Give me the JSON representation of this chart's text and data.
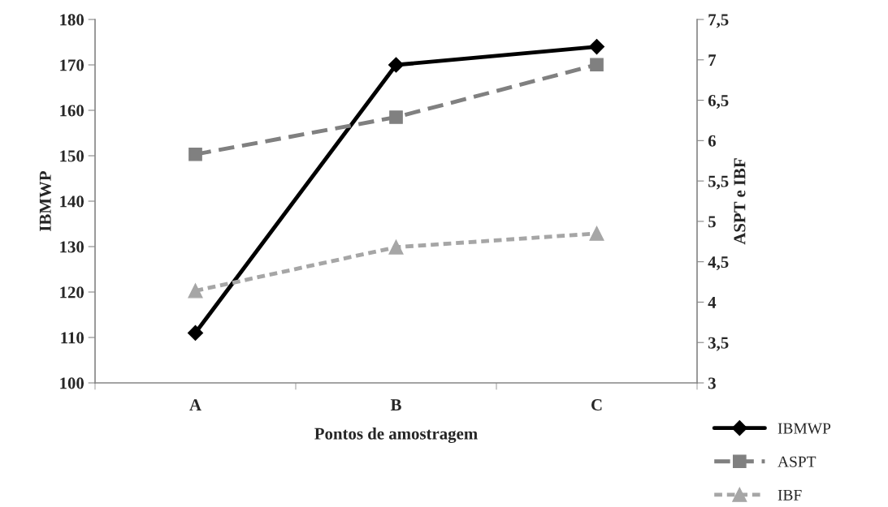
{
  "chart_data": {
    "type": "line",
    "xlabel": "Pontos de amostragem",
    "ylabel": "IBMWP",
    "y2label": "ASPT e IBF",
    "categories": [
      "A",
      "B",
      "C"
    ],
    "series": [
      {
        "name": "IBMWP",
        "color": "#000000",
        "values": [
          111,
          170,
          174
        ],
        "marker": "diamond",
        "line_style": "solid"
      },
      {
        "name": "ASPT",
        "color": "#808080",
        "values": [
          5.83,
          6.29,
          6.94
        ],
        "axis": "y2",
        "marker": "square",
        "line_style": "dashed"
      },
      {
        "name": "IBF",
        "color": "#a6a6a6",
        "values": [
          4.14,
          4.68,
          4.85
        ],
        "axis": "y2",
        "marker": "triangle",
        "line_style": "dotted"
      }
    ],
    "ylim": [
      100,
      180
    ],
    "yticks": [
      100,
      110,
      120,
      130,
      140,
      150,
      160,
      170,
      180
    ],
    "y2lim": [
      3,
      7.5
    ],
    "y2ticks": [
      3,
      {
        "value": 3.5,
        "label": "3,5"
      },
      4,
      {
        "value": 4.5,
        "label": "4,5"
      },
      5,
      {
        "value": 5.5,
        "label": "5,5"
      },
      6,
      {
        "value": 6.5,
        "label": "6,5"
      },
      7,
      {
        "value": 7.5,
        "label": "7,5"
      }
    ],
    "grid": false,
    "legend": "bottom right"
  }
}
